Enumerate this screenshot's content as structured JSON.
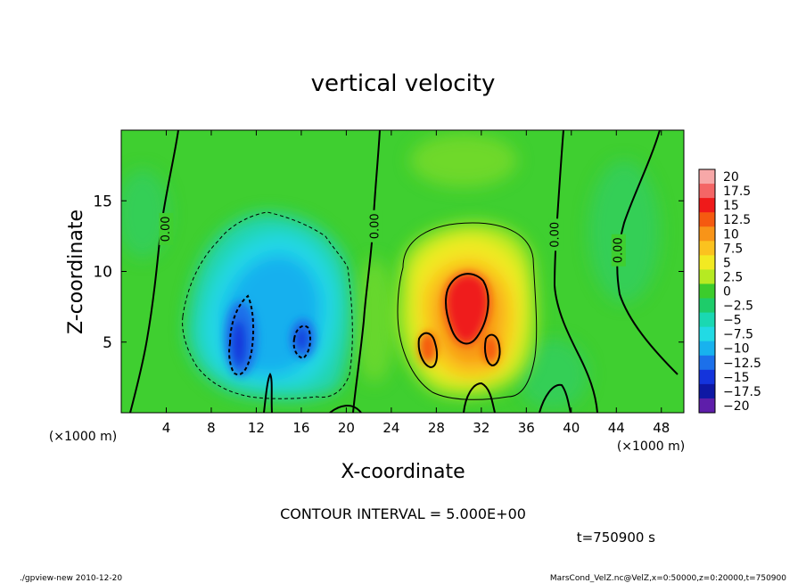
{
  "chart_data": {
    "type": "contour",
    "title": "vertical velocity",
    "xlabel": "X-coordinate",
    "ylabel": "Z-coordinate",
    "x_unit": "(×1000 m)",
    "y_unit": "(×1000 m)",
    "xlim": [
      0,
      50
    ],
    "ylim": [
      0,
      20
    ],
    "x_ticks": [
      4,
      8,
      12,
      16,
      20,
      24,
      28,
      32,
      36,
      40,
      44,
      48
    ],
    "y_ticks": [
      5,
      10,
      15
    ],
    "contour_interval_text": "CONTOUR INTERVAL = 5.000E+00",
    "zero_contour_label": "0.00",
    "zero_contour_label_positions": [
      [
        4,
        13
      ],
      [
        22.6,
        13.2
      ],
      [
        38.6,
        12.6
      ],
      [
        44.2,
        11.5
      ]
    ],
    "colorbar": {
      "labels": [
        "20",
        "17.5",
        "15",
        "12.5",
        "10",
        "7.5",
        "5",
        "2.5",
        "0",
        "−2.5",
        "−5",
        "−7.5",
        "−10",
        "−12.5",
        "−15",
        "−17.5",
        "−20"
      ],
      "colors": [
        "#f7a8a8",
        "#f46666",
        "#ef1a1a",
        "#f55a10",
        "#f89418",
        "#fbc21f",
        "#f2ea22",
        "#b6ea22",
        "#3ccc2c",
        "#1ecc6a",
        "#1ad8b2",
        "#22dae4",
        "#18b2ee",
        "#1c70ea",
        "#1434dc",
        "#0e18a4",
        "#5e1eaa"
      ]
    },
    "features": [
      {
        "kind": "updraft",
        "center": [
          29.5,
          7.5
        ],
        "peak": 12
      },
      {
        "kind": "downdraft",
        "center": [
          12,
          6
        ],
        "peak": -12
      }
    ],
    "time_label": "t=750900 s"
  },
  "footer": {
    "left": "./gpview-new   2010-12-20",
    "right": "MarsCond_VelZ.nc@VelZ,x=0:50000,z=0:20000,t=750900"
  }
}
